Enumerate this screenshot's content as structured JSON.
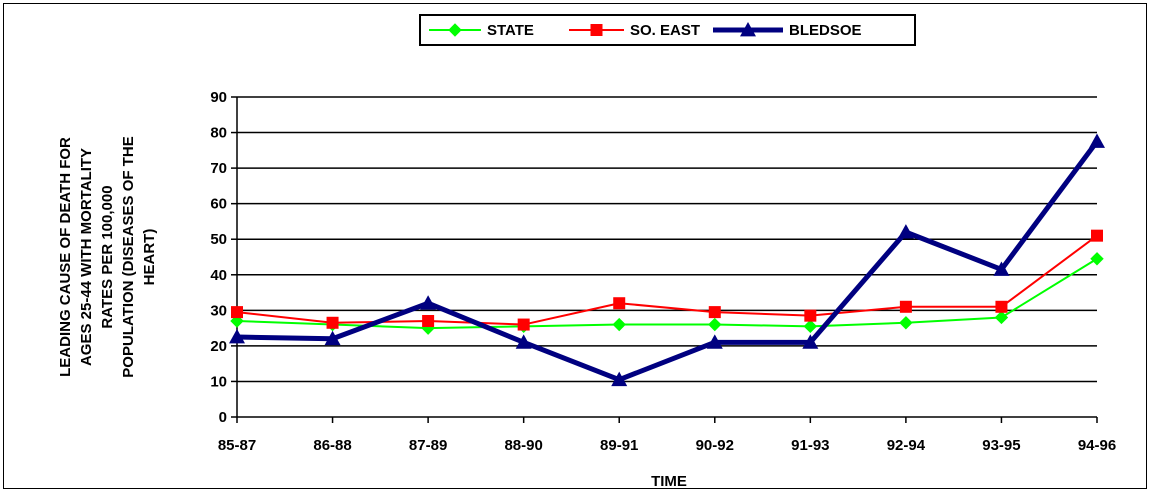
{
  "chart_data": {
    "type": "line",
    "categories": [
      "85-87",
      "86-88",
      "87-89",
      "88-90",
      "89-91",
      "90-92",
      "91-93",
      "92-94",
      "93-95",
      "94-96"
    ],
    "series": [
      {
        "name": "STATE",
        "color": "#00ff00",
        "marker": "diamond",
        "values": [
          27,
          26,
          25,
          25.5,
          26,
          26,
          25.5,
          26.5,
          28,
          44.5
        ]
      },
      {
        "name": "SO. EAST",
        "color": "#ff0000",
        "marker": "square",
        "values": [
          29.5,
          26.5,
          27,
          26,
          32,
          29.5,
          28.5,
          31,
          31,
          51
        ]
      },
      {
        "name": "BLEDSOE",
        "color": "#000080",
        "marker": "triangle",
        "values": [
          22.5,
          22,
          32,
          21,
          10.5,
          21,
          21,
          52,
          41.5,
          77.5
        ]
      }
    ],
    "xlabel": "TIME",
    "ylabel_lines": [
      "LEADING CAUSE OF DEATH FOR",
      "AGES 25-44 WITH MORTALITY",
      "RATES PER 100,000",
      "POPULATION (DISEASES OF THE",
      "HEART)"
    ],
    "ylim": [
      0,
      90
    ],
    "yticks": [
      "0",
      "10",
      "20",
      "30",
      "40",
      "50",
      "60",
      "70",
      "80",
      "90"
    ],
    "grid": "horizontal",
    "legend_position": "top"
  }
}
